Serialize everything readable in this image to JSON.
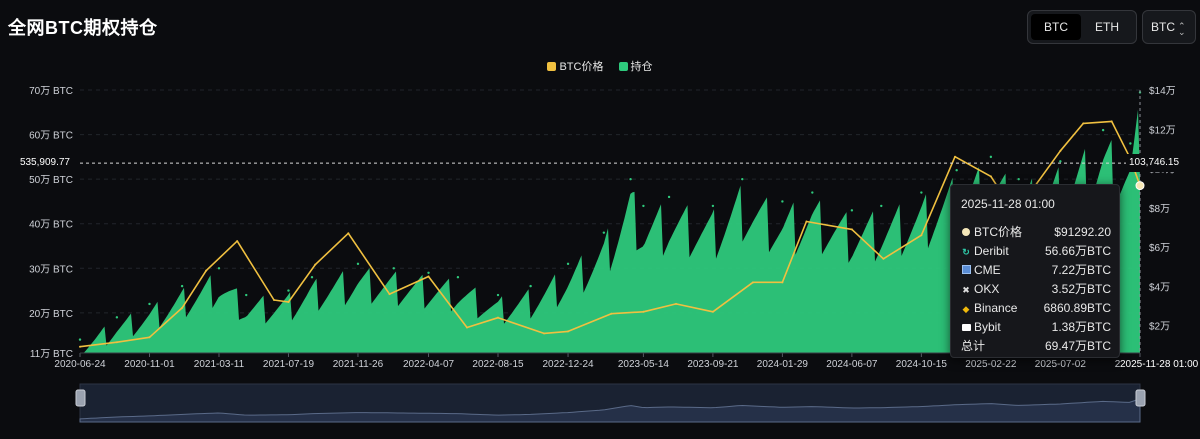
{
  "title": "全网BTC期权持仓",
  "asset_tabs": [
    {
      "label": "BTC",
      "active": true
    },
    {
      "label": "ETH",
      "active": false
    }
  ],
  "coin_select": {
    "value": "BTC"
  },
  "legend": [
    {
      "label": "BTC价格",
      "color": "#f0c040"
    },
    {
      "label": "持仓",
      "color": "#2ec97c"
    }
  ],
  "colors": {
    "price": "#f0c040",
    "oi": "#2ec97c",
    "background": "#0b0c0f",
    "navigator": "#253048"
  },
  "crosshair": {
    "left_value": "535,909.77",
    "right_value": "103,746.15",
    "x_label": "2025-11-28 01:00"
  },
  "tooltip": {
    "time": "2025-11-28 01:00",
    "rows": [
      {
        "icon": "btc-price-dot-icon",
        "label": "BTC价格",
        "value": "$91292.20"
      },
      {
        "icon": "deribit-icon",
        "label": "Deribit",
        "value": "56.66万BTC"
      },
      {
        "icon": "cme-icon",
        "label": "CME",
        "value": "7.22万BTC"
      },
      {
        "icon": "okx-icon",
        "label": "OKX",
        "value": "3.52万BTC"
      },
      {
        "icon": "binance-icon",
        "label": "Binance",
        "value": "6860.89BTC"
      },
      {
        "icon": "bybit-icon",
        "label": "Bybit",
        "value": "1.38万BTC"
      },
      {
        "icon": "",
        "label": "总计",
        "value": "69.47万BTC"
      }
    ]
  },
  "chart_data": {
    "type": "area",
    "x_ticks": [
      "2020-06-24",
      "2020-11-01",
      "2021-03-11",
      "2021-07-19",
      "2021-11-26",
      "2022-04-07",
      "2022-08-15",
      "2022-12-24",
      "2023-05-14",
      "2023-09-21",
      "2024-01-29",
      "2024-06-07",
      "2024-10-15",
      "2025-02-22",
      "2025-07-02",
      "2025-11-28"
    ],
    "y_left_ticks": [
      "11万 BTC",
      "20万 BTC",
      "30万 BTC",
      "40万 BTC",
      "50万 BTC",
      "60万 BTC",
      "70万 BTC"
    ],
    "y_left_values": [
      11,
      20,
      30,
      40,
      50,
      60,
      70
    ],
    "y_left_range": [
      11,
      70
    ],
    "y_right_ticks": [
      "$2万",
      "$4万",
      "$6万",
      "$8万",
      "$10万",
      "$12万",
      "$14万"
    ],
    "y_right_values": [
      2,
      4,
      6,
      8,
      10,
      12,
      14
    ],
    "y_right_range": [
      0.6,
      14
    ],
    "series": [
      {
        "name": "持仓",
        "axis": "left",
        "unit": "万BTC",
        "x": [
          "2020-06-24",
          "2020-09-01",
          "2020-11-01",
          "2021-01-01",
          "2021-03-11",
          "2021-05-01",
          "2021-07-19",
          "2021-09-01",
          "2021-11-26",
          "2022-02-01",
          "2022-04-07",
          "2022-06-01",
          "2022-08-15",
          "2022-10-15",
          "2022-12-24",
          "2023-03-01",
          "2023-04-20",
          "2023-05-14",
          "2023-07-01",
          "2023-09-21",
          "2023-11-15",
          "2024-01-29",
          "2024-03-25",
          "2024-06-07",
          "2024-08-01",
          "2024-10-15",
          "2024-12-20",
          "2025-02-22",
          "2025-04-15",
          "2025-07-02",
          "2025-09-20",
          "2025-11-10",
          "2025-11-28"
        ],
        "values": [
          14,
          19,
          22,
          26,
          30,
          24,
          25,
          28,
          31,
          30,
          29,
          28,
          24,
          26,
          31,
          38,
          50,
          44,
          46,
          44,
          50,
          45,
          47,
          43,
          44,
          47,
          52,
          55,
          50,
          54,
          61,
          58,
          69.47
        ]
      },
      {
        "name": "BTC价格",
        "axis": "right",
        "unit": "万美元",
        "x": [
          "2020-06-24",
          "2020-09-01",
          "2020-11-01",
          "2021-01-01",
          "2021-02-15",
          "2021-04-14",
          "2021-06-22",
          "2021-07-19",
          "2021-09-07",
          "2021-11-08",
          "2022-01-24",
          "2022-04-07",
          "2022-06-18",
          "2022-08-15",
          "2022-11-09",
          "2022-12-24",
          "2023-03-15",
          "2023-05-14",
          "2023-07-14",
          "2023-09-21",
          "2023-12-05",
          "2024-01-29",
          "2024-03-14",
          "2024-06-07",
          "2024-08-05",
          "2024-10-15",
          "2024-12-17",
          "2025-02-22",
          "2025-04-08",
          "2025-07-02",
          "2025-08-14",
          "2025-10-06",
          "2025-11-10",
          "2025-11-28"
        ],
        "values": [
          0.92,
          1.15,
          1.4,
          2.9,
          4.8,
          6.3,
          3.3,
          3.2,
          5.1,
          6.7,
          3.6,
          4.5,
          1.9,
          2.4,
          1.6,
          1.7,
          2.6,
          2.7,
          3.1,
          2.7,
          4.2,
          4.2,
          7.3,
          6.9,
          5.4,
          6.6,
          10.6,
          9.6,
          7.7,
          10.9,
          12.3,
          12.4,
          10.5,
          9.13
        ]
      }
    ],
    "grid": true,
    "legend_position": "top-center"
  }
}
